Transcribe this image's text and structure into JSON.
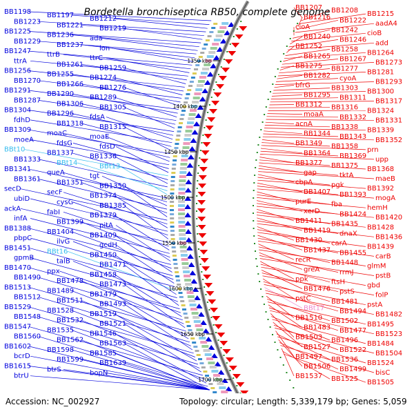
{
  "title": "Bordetella bronchiseptica RB50, complete genome",
  "footer": {
    "accession": "Accession: NC_002927",
    "summary": "Topology: circular; Length: 5,339,179 bp; Genes: 5,059"
  },
  "colors": {
    "forward": "#0000dd",
    "reverse": "#ee0000",
    "trna": "#33bbee",
    "rrna_rev": "#ee88cc",
    "backbone": "#888888",
    "tick": "#228822"
  },
  "scale_labels": [
    "1350 kbp",
    "1400 kbp",
    "1450 kbp",
    "1500 kbp",
    "1550 kbp",
    "1600 kbp",
    "1650 kbp",
    "1700 kbp"
  ],
  "left_labels": [
    "BB1198",
    "BB1197",
    "BB1212",
    "BB1223",
    "BB1221",
    "BB1219",
    "BB1225",
    "BB1236",
    "ada",
    "BB1229",
    "BB1237",
    "lon",
    "BB1247",
    "ttrB",
    "ttrC",
    "ttrA",
    "BB1261",
    "BB1259",
    "BB1256",
    "BB1255",
    "BB1274",
    "BB1270",
    "BB1266",
    "BB1276",
    "BB1291",
    "BB1290",
    "BB1289",
    "BB1287",
    "BB1306",
    "BB1305",
    "BB1304",
    "BB1296",
    "fdsA",
    "fdhD",
    "BB1318",
    "BB1315",
    "BB1309",
    "moaC",
    "moaE",
    "moeA",
    "fdsG",
    "fdsD",
    "BBt10",
    "BB1337",
    "BB1336",
    "BB1333",
    "BBt14",
    "BBt13",
    "BB1341",
    "queA",
    "tgt",
    "BB1361",
    "BB1351",
    "BB1350",
    "secD",
    "secF",
    "BB1374",
    "ubiD",
    "cysG",
    "BB1385",
    "ackA",
    "fabI",
    "BB1379",
    "infA",
    "BB1399",
    "pitA",
    "BB1388",
    "BB1404",
    "BB1409",
    "pbpC",
    "ilvG",
    "gcdH",
    "BB1451",
    "BBt16",
    "BB1450",
    "gpmB",
    "talB",
    "BB1471",
    "BB1470",
    "ppx",
    "BB1458",
    "BB1490",
    "BB1478",
    "BB1473",
    "BB1513",
    "BB1489",
    "BB1479",
    "BB1512",
    "BB1511",
    "BB1493",
    "BB1529",
    "BB1528",
    "BB1519",
    "BB1548",
    "BB1532",
    "BB1521",
    "BB1547",
    "BB1535",
    "BB1546",
    "BB1560",
    "BB1562",
    "BB1563",
    "BB1602",
    "BB1598",
    "BB1585",
    "bcrD",
    "BB1599",
    "BB1639",
    "BB1615",
    "btrS",
    "bopN",
    "btrU"
  ],
  "right_labels": [
    "BB1207",
    "BB1208",
    "BB1215",
    "BB1216",
    "BB1222",
    "aadA4",
    "cioA",
    "BB1242",
    "cioB",
    "BB1240",
    "BB1246",
    "add",
    "BB1252",
    "BB1258",
    "BB1264",
    "BB1265",
    "BB1267",
    "BB1273",
    "BB1275",
    "BB1277",
    "BB1281",
    "BB1282",
    "cyoA",
    "BB1293",
    "bfrG",
    "BB1303",
    "BB1300",
    "BB1295",
    "BB1311",
    "BB1317",
    "BB1312",
    "BB1316",
    "BB1324",
    "moaA",
    "BB1332",
    "BB1331",
    "acnA",
    "BB1338",
    "BB1339",
    "BB1344",
    "BB1343",
    "BB1352",
    "BB1349",
    "BB1358",
    "prn",
    "BB1364",
    "BB1369",
    "upp",
    "BB1377",
    "BB1375",
    "BB1368",
    "gap",
    "tktA",
    "maeB",
    "cbpA",
    "pgk",
    "BB1392",
    "BB1407",
    "BB1393",
    "mogA",
    "purE",
    "fba",
    "hemH",
    "xerD",
    "BB1424",
    "BB1420",
    "BB1411",
    "BB1435",
    "BB1428",
    "BB1419",
    "dnaX",
    "BB1436",
    "BB1430",
    "carA",
    "BB1439",
    "BB1437",
    "BB1455",
    "carB",
    "recR",
    "BB1448",
    "glmM",
    "greA",
    "rrmJ",
    "pstB",
    "ppk",
    "ftsH",
    "gbd",
    "BB1476",
    "pstS",
    "folP",
    "pstC",
    "BB1481",
    "pstA",
    "BBt17",
    "BB1494",
    "BB1482",
    "BB1510",
    "BB1502",
    "BB1495",
    "BB1483",
    "BB1477",
    "BB1523",
    "BB1503",
    "BB1496",
    "BB1484",
    "BB1527",
    "BB1522",
    "BB1504",
    "BB1497",
    "BB1536",
    "BB1524",
    "BB1506",
    "BB1499",
    "bisC",
    "BB1537",
    "BB1525",
    "BB1505"
  ]
}
